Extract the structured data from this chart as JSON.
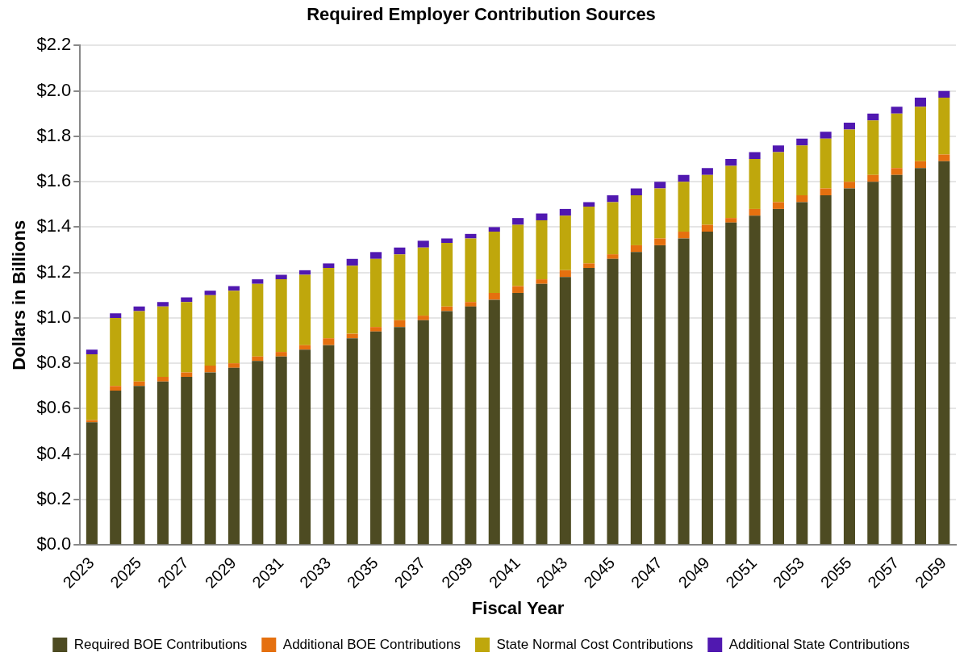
{
  "chart_data": {
    "type": "bar",
    "title": "Required Employer Contribution Sources",
    "xlabel": "Fiscal Year",
    "ylabel": "Dollars in Billions",
    "stacked": true,
    "grid": "y",
    "legend": "bottom",
    "categories": [
      "2023",
      null,
      "2025",
      null,
      "2027",
      null,
      "2029",
      null,
      "2031",
      null,
      "2033",
      null,
      "2035",
      null,
      "2037",
      null,
      "2039",
      null,
      "2041",
      null,
      "2043",
      null,
      "2045",
      null,
      "2047",
      null,
      "2049",
      null,
      "2051",
      null,
      "2053",
      null,
      "2055",
      null,
      "2057",
      null,
      "2059"
    ],
    "ylim": [
      0,
      2.2
    ],
    "yticks": [
      {
        "value": 0,
        "label": "$0.0"
      },
      {
        "value": 0.2,
        "label": "$0.2"
      },
      {
        "value": 0.4,
        "label": "$0.4"
      },
      {
        "value": 0.6,
        "label": "$0.6"
      },
      {
        "value": 0.8,
        "label": "$0.8"
      },
      {
        "value": 1.0,
        "label": "$1.0"
      },
      {
        "value": 1.2,
        "label": "$1.2"
      },
      {
        "value": 1.4,
        "label": "$1.4"
      },
      {
        "value": 1.6,
        "label": "$1.6"
      },
      {
        "value": 1.8,
        "label": "$1.8"
      },
      {
        "value": 2.0,
        "label": "$2.0"
      },
      {
        "value": 2.2,
        "label": "$2.2"
      }
    ],
    "series": [
      {
        "name": "Required BOE Contributions",
        "color": "#4d4b22",
        "values": [
          0.54,
          0.68,
          0.7,
          0.72,
          0.74,
          0.76,
          0.78,
          0.81,
          0.83,
          0.86,
          0.88,
          0.91,
          0.94,
          0.96,
          0.99,
          1.03,
          1.05,
          1.08,
          1.11,
          1.15,
          1.18,
          1.22,
          1.26,
          1.29,
          1.32,
          1.35,
          1.38,
          1.42,
          1.45,
          1.48,
          1.51,
          1.54,
          1.57,
          1.6,
          1.63,
          1.66,
          1.69
        ]
      },
      {
        "name": "Additional BOE Contributions",
        "color": "#e5700f",
        "values": [
          0.01,
          0.02,
          0.02,
          0.02,
          0.02,
          0.03,
          0.02,
          0.02,
          0.02,
          0.02,
          0.03,
          0.02,
          0.02,
          0.03,
          0.02,
          0.02,
          0.02,
          0.03,
          0.03,
          0.02,
          0.03,
          0.02,
          0.02,
          0.03,
          0.03,
          0.03,
          0.03,
          0.02,
          0.03,
          0.03,
          0.03,
          0.03,
          0.03,
          0.03,
          0.03,
          0.03,
          0.03
        ]
      },
      {
        "name": "State Normal Cost Contributions",
        "color": "#bfa70c",
        "values": [
          0.29,
          0.3,
          0.31,
          0.31,
          0.31,
          0.31,
          0.32,
          0.32,
          0.32,
          0.31,
          0.31,
          0.3,
          0.3,
          0.29,
          0.3,
          0.28,
          0.28,
          0.27,
          0.27,
          0.26,
          0.24,
          0.25,
          0.23,
          0.22,
          0.22,
          0.22,
          0.22,
          0.23,
          0.22,
          0.22,
          0.22,
          0.22,
          0.23,
          0.24,
          0.24,
          0.24,
          0.25
        ]
      },
      {
        "name": "Additional State Contributions",
        "color": "#5018b0",
        "values": [
          0.02,
          0.02,
          0.02,
          0.02,
          0.02,
          0.02,
          0.02,
          0.02,
          0.02,
          0.02,
          0.02,
          0.03,
          0.03,
          0.03,
          0.03,
          0.02,
          0.02,
          0.02,
          0.03,
          0.03,
          0.03,
          0.02,
          0.03,
          0.03,
          0.03,
          0.03,
          0.03,
          0.03,
          0.03,
          0.03,
          0.03,
          0.03,
          0.03,
          0.03,
          0.03,
          0.04,
          0.03
        ]
      }
    ]
  }
}
